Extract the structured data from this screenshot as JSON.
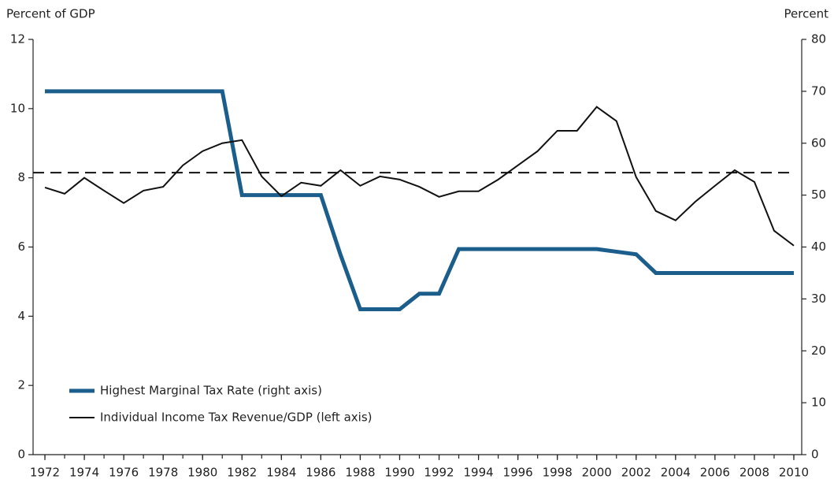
{
  "chart_data": {
    "type": "line",
    "y_label": "Percent of GDP",
    "y2_label": "Percent",
    "x": [
      1972,
      1973,
      1974,
      1975,
      1976,
      1977,
      1978,
      1979,
      1980,
      1981,
      1982,
      1983,
      1984,
      1985,
      1986,
      1987,
      1988,
      1989,
      1990,
      1991,
      1992,
      1993,
      1994,
      1995,
      1996,
      1997,
      1998,
      1999,
      2000,
      2001,
      2002,
      2003,
      2004,
      2005,
      2006,
      2007,
      2008,
      2009,
      2010
    ],
    "xlim": [
      1971.4,
      2010.4
    ],
    "xticks": [
      1972,
      1974,
      1976,
      1978,
      1980,
      1982,
      1984,
      1986,
      1988,
      1990,
      1992,
      1994,
      1996,
      1998,
      2000,
      2002,
      2004,
      2006,
      2008,
      2010
    ],
    "ylim": [
      0,
      12
    ],
    "yticks": [
      0,
      2,
      4,
      6,
      8,
      10,
      12
    ],
    "y2lim": [
      0,
      80
    ],
    "y2ticks": [
      0,
      10,
      20,
      30,
      40,
      50,
      60,
      70,
      80
    ],
    "reference_y": 8.15,
    "series": [
      {
        "name": "Highest Marginal Tax Rate (right axis)",
        "color": "#1b5e8c",
        "axis": "y2",
        "values": [
          70,
          70,
          70,
          70,
          70,
          70,
          70,
          70,
          70,
          70,
          50,
          50,
          50,
          50,
          50,
          38.5,
          28,
          28,
          28,
          31,
          31,
          39.6,
          39.6,
          39.6,
          39.6,
          39.6,
          39.6,
          39.6,
          39.6,
          39.1,
          38.6,
          35,
          35,
          35,
          35,
          35,
          35,
          35,
          35
        ]
      },
      {
        "name": "Individual Income Tax Revenue/GDP (left axis)",
        "color": "#111111",
        "axis": "y",
        "values": [
          7.72,
          7.54,
          8.0,
          7.63,
          7.27,
          7.63,
          7.74,
          8.36,
          8.77,
          9.0,
          9.09,
          8.04,
          7.47,
          7.86,
          7.77,
          8.22,
          7.77,
          8.04,
          7.95,
          7.74,
          7.45,
          7.61,
          7.61,
          7.95,
          8.36,
          8.77,
          9.36,
          9.36,
          10.05,
          9.64,
          8.02,
          7.04,
          6.77,
          7.31,
          7.77,
          8.22,
          7.88,
          6.47,
          6.04
        ]
      }
    ]
  }
}
